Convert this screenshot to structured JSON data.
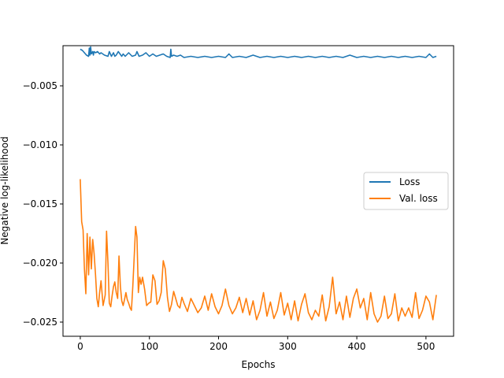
{
  "chart_data": {
    "type": "line",
    "title": "",
    "xlabel": "Epochs",
    "ylabel": "Negative log-likelihood",
    "xlim": [
      -25,
      540
    ],
    "ylim": [
      -0.0262,
      -0.0016
    ],
    "x_ticks": [
      0,
      100,
      200,
      300,
      400,
      500
    ],
    "y_ticks": [
      -0.005,
      -0.01,
      -0.015,
      -0.02,
      -0.025
    ],
    "x_tick_labels": [
      "0",
      "100",
      "200",
      "300",
      "400",
      "500"
    ],
    "y_tick_labels": [
      "−0.005",
      "−0.010",
      "−0.015",
      "−0.020",
      "−0.025"
    ],
    "grid": false,
    "legend_position": "center-right",
    "series": [
      {
        "name": "Loss",
        "color": "#1f77b4",
        "x": [
          0,
          3,
          6,
          9,
          12,
          13,
          14,
          15,
          16,
          18,
          19,
          20,
          22,
          25,
          28,
          30,
          35,
          40,
          42,
          45,
          48,
          50,
          52,
          55,
          60,
          62,
          65,
          70,
          75,
          80,
          82,
          85,
          90,
          95,
          100,
          105,
          110,
          115,
          120,
          125,
          130,
          131,
          132,
          135,
          140,
          145,
          150,
          160,
          170,
          180,
          190,
          200,
          210,
          215,
          220,
          230,
          240,
          250,
          260,
          270,
          280,
          290,
          300,
          310,
          320,
          330,
          340,
          350,
          360,
          370,
          380,
          390,
          400,
          410,
          420,
          430,
          440,
          450,
          460,
          470,
          480,
          490,
          500,
          505,
          510,
          515
        ],
        "y": [
          -0.0019,
          -0.002,
          -0.0022,
          -0.0024,
          -0.0025,
          -0.0018,
          -0.0024,
          -0.0017,
          -0.0023,
          -0.0021,
          -0.0024,
          -0.0021,
          -0.0022,
          -0.0021,
          -0.0023,
          -0.0022,
          -0.0024,
          -0.0025,
          -0.0021,
          -0.0025,
          -0.0022,
          -0.0025,
          -0.0024,
          -0.0021,
          -0.0025,
          -0.0023,
          -0.0025,
          -0.0022,
          -0.0025,
          -0.0024,
          -0.0021,
          -0.0025,
          -0.0024,
          -0.0022,
          -0.0025,
          -0.0023,
          -0.0025,
          -0.0024,
          -0.0023,
          -0.0025,
          -0.0026,
          -0.0019,
          -0.0025,
          -0.0024,
          -0.0025,
          -0.0024,
          -0.0026,
          -0.0025,
          -0.0026,
          -0.0025,
          -0.0026,
          -0.0025,
          -0.0026,
          -0.0023,
          -0.0026,
          -0.0025,
          -0.0026,
          -0.0024,
          -0.0026,
          -0.0025,
          -0.0026,
          -0.0025,
          -0.0026,
          -0.0025,
          -0.0026,
          -0.0025,
          -0.0026,
          -0.0025,
          -0.0026,
          -0.0025,
          -0.0026,
          -0.0024,
          -0.0026,
          -0.0025,
          -0.0026,
          -0.0025,
          -0.0026,
          -0.0025,
          -0.0026,
          -0.0025,
          -0.0026,
          -0.0025,
          -0.0026,
          -0.0023,
          -0.0026,
          -0.0025
        ]
      },
      {
        "name": "Val. loss",
        "color": "#ff7f0e",
        "x": [
          0,
          2,
          4,
          6,
          8,
          10,
          12,
          14,
          16,
          18,
          20,
          22,
          24,
          26,
          28,
          30,
          33,
          36,
          38,
          40,
          42,
          44,
          46,
          48,
          50,
          52,
          54,
          56,
          58,
          60,
          62,
          64,
          66,
          68,
          70,
          72,
          74,
          76,
          78,
          80,
          82,
          84,
          86,
          88,
          90,
          93,
          96,
          99,
          102,
          105,
          108,
          111,
          114,
          117,
          120,
          123,
          126,
          129,
          132,
          135,
          138,
          141,
          144,
          147,
          150,
          155,
          160,
          165,
          170,
          175,
          180,
          185,
          190,
          195,
          200,
          205,
          210,
          215,
          220,
          225,
          230,
          235,
          240,
          245,
          250,
          255,
          260,
          265,
          270,
          275,
          280,
          285,
          290,
          295,
          300,
          305,
          310,
          315,
          320,
          325,
          330,
          335,
          340,
          345,
          350,
          355,
          360,
          365,
          370,
          375,
          380,
          385,
          390,
          395,
          400,
          405,
          410,
          415,
          420,
          425,
          430,
          435,
          440,
          445,
          450,
          455,
          460,
          465,
          470,
          475,
          480,
          485,
          490,
          495,
          500,
          505,
          510,
          515
        ],
        "y": [
          -0.0129,
          -0.0165,
          -0.0172,
          -0.0205,
          -0.0226,
          -0.0175,
          -0.021,
          -0.0178,
          -0.0205,
          -0.018,
          -0.0192,
          -0.021,
          -0.023,
          -0.0237,
          -0.0225,
          -0.0215,
          -0.0236,
          -0.0227,
          -0.0173,
          -0.02,
          -0.0234,
          -0.0237,
          -0.0228,
          -0.022,
          -0.0216,
          -0.0225,
          -0.023,
          -0.0194,
          -0.022,
          -0.0232,
          -0.0236,
          -0.0231,
          -0.0225,
          -0.0231,
          -0.0234,
          -0.0238,
          -0.024,
          -0.0219,
          -0.0195,
          -0.0169,
          -0.0178,
          -0.0225,
          -0.0212,
          -0.0218,
          -0.0212,
          -0.0222,
          -0.0236,
          -0.0234,
          -0.0233,
          -0.021,
          -0.0215,
          -0.0235,
          -0.0232,
          -0.0225,
          -0.0198,
          -0.0205,
          -0.0229,
          -0.0241,
          -0.0235,
          -0.0224,
          -0.023,
          -0.0236,
          -0.0238,
          -0.0229,
          -0.0234,
          -0.0241,
          -0.023,
          -0.0236,
          -0.0242,
          -0.0238,
          -0.0228,
          -0.024,
          -0.0226,
          -0.0237,
          -0.0243,
          -0.0236,
          -0.0222,
          -0.0236,
          -0.0243,
          -0.0238,
          -0.0229,
          -0.0242,
          -0.023,
          -0.0244,
          -0.0232,
          -0.0248,
          -0.024,
          -0.0225,
          -0.0245,
          -0.0233,
          -0.0247,
          -0.024,
          -0.0225,
          -0.0244,
          -0.0234,
          -0.0248,
          -0.0232,
          -0.0249,
          -0.0235,
          -0.0226,
          -0.0242,
          -0.0248,
          -0.024,
          -0.0245,
          -0.0227,
          -0.0249,
          -0.0237,
          -0.0212,
          -0.0243,
          -0.0233,
          -0.0248,
          -0.0228,
          -0.0246,
          -0.023,
          -0.0222,
          -0.0238,
          -0.023,
          -0.0248,
          -0.0225,
          -0.0243,
          -0.025,
          -0.0245,
          -0.0228,
          -0.0247,
          -0.0243,
          -0.0226,
          -0.0249,
          -0.0238,
          -0.0245,
          -0.0238,
          -0.0246,
          -0.0225,
          -0.0247,
          -0.024,
          -0.0228,
          -0.0233,
          -0.0248,
          -0.0227
        ]
      }
    ]
  }
}
